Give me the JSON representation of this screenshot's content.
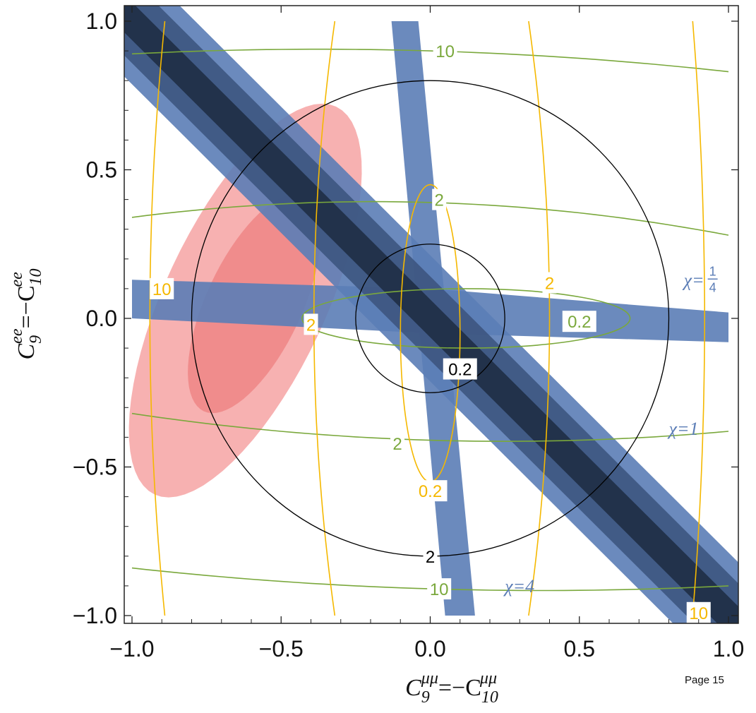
{
  "chart_data": {
    "type": "contour",
    "xlabel": "C9μμ=−C10μμ",
    "ylabel": "C9ee=−C10ee",
    "xlim": [
      -1.0,
      1.0
    ],
    "ylim": [
      -1.0,
      1.0
    ],
    "x_ticks": [
      -1.0,
      -0.5,
      0.0,
      0.5,
      1.0
    ],
    "y_ticks": [
      -1.0,
      -0.5,
      0.0,
      0.5,
      1.0
    ],
    "x_tick_labels": [
      "−1.0",
      "−0.5",
      "0.0",
      "0.5",
      "1.0"
    ],
    "y_tick_labels": [
      "−1.0",
      "−0.5",
      "0.0",
      "0.5",
      "1.0"
    ],
    "colors": {
      "blue_band": "#5b7db6",
      "blue_mid": "#3d5580",
      "blue_dark": "#1f2d45",
      "pink_outer": "#f7b1b1",
      "pink_inner": "#f08c8c",
      "orange_contour": "#f5b800",
      "green_contour": "#7aa83c",
      "black_contour": "#000000",
      "chi_label": "#5b7db6"
    },
    "black_circles": [
      {
        "radius": 0.8,
        "label": "2",
        "label_at": [
          0.0,
          -0.8
        ]
      },
      {
        "radius": 0.25,
        "label": "0.2",
        "label_at": [
          0.1,
          -0.17
        ]
      }
    ],
    "chi_labels": [
      {
        "text": "χ=",
        "fraction_num": "1",
        "fraction_den": "4",
        "at": [
          0.85,
          0.13
        ]
      },
      {
        "text": "χ=1",
        "at": [
          0.8,
          -0.37
        ]
      },
      {
        "text": "χ=4",
        "at": [
          0.25,
          -0.9
        ]
      }
    ],
    "orange_labels": [
      {
        "text": "10",
        "at": [
          -0.9,
          0.1
        ]
      },
      {
        "text": "2",
        "at": [
          -0.4,
          -0.02
        ]
      },
      {
        "text": "2",
        "at": [
          0.4,
          0.12
        ]
      },
      {
        "text": "0.2",
        "at": [
          0.0,
          -0.58
        ]
      },
      {
        "text": "10",
        "at": [
          0.9,
          -0.99
        ]
      }
    ],
    "green_labels": [
      {
        "text": "10",
        "at": [
          0.05,
          0.9
        ]
      },
      {
        "text": "2",
        "at": [
          0.03,
          0.4
        ]
      },
      {
        "text": "0.2",
        "at": [
          0.5,
          -0.01
        ]
      },
      {
        "text": "2",
        "at": [
          -0.11,
          -0.42
        ]
      },
      {
        "text": "10",
        "at": [
          0.03,
          -0.91
        ]
      }
    ],
    "page_label": "Page 15"
  }
}
